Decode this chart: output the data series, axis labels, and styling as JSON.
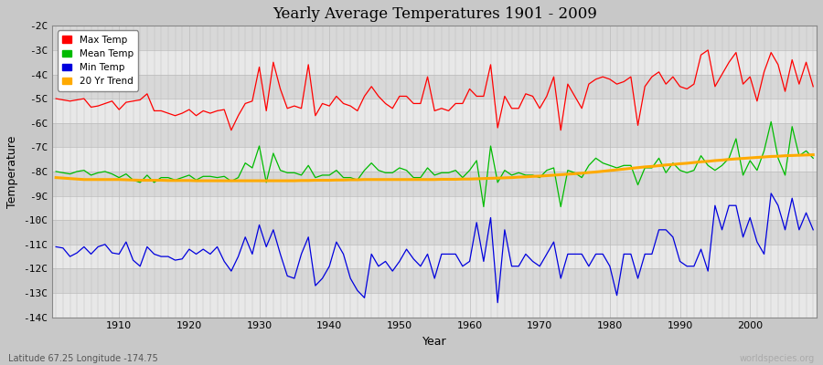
{
  "title": "Yearly Average Temperatures 1901 - 2009",
  "xlabel": "Year",
  "ylabel": "Temperature",
  "subtitle_left": "Latitude 67.25 Longitude -174.75",
  "subtitle_right": "worldspecies.org",
  "year_start": 1901,
  "year_end": 2009,
  "ylim": [
    -14,
    -2
  ],
  "yticks": [
    -14,
    -13,
    -12,
    -11,
    -10,
    -9,
    -8,
    -7,
    -6,
    -5,
    -4,
    -3,
    -2
  ],
  "ytick_labels": [
    "-14C",
    "-13C",
    "-12C",
    "-11C",
    "-10C",
    "-9C",
    "-8C",
    "-7C",
    "-6C",
    "-5C",
    "-4C",
    "-3C",
    "-2C"
  ],
  "xticks": [
    1910,
    1920,
    1930,
    1940,
    1950,
    1960,
    1970,
    1980,
    1990,
    2000
  ],
  "colors": {
    "max_temp": "#ff0000",
    "mean_temp": "#00bb00",
    "min_temp": "#0000dd",
    "trend": "#ffaa00",
    "fig_bg": "#c8c8c8",
    "plot_bg_light": "#e8e8e8",
    "plot_bg_dark": "#d8d8d8",
    "grid": "#bbbbbb"
  },
  "legend": {
    "max_temp": "Max Temp",
    "mean_temp": "Mean Temp",
    "min_temp": "Min Temp",
    "trend": "20 Yr Trend"
  },
  "max_temp": [
    -5.0,
    -5.05,
    -5.1,
    -5.05,
    -5.0,
    -5.35,
    -5.3,
    -5.2,
    -5.1,
    -5.45,
    -5.15,
    -5.1,
    -5.05,
    -4.8,
    -5.5,
    -5.5,
    -5.6,
    -5.7,
    -5.6,
    -5.45,
    -5.7,
    -5.5,
    -5.6,
    -5.5,
    -5.45,
    -6.3,
    -5.7,
    -5.2,
    -5.1,
    -3.7,
    -5.5,
    -3.5,
    -4.6,
    -5.4,
    -5.3,
    -5.4,
    -3.6,
    -5.7,
    -5.2,
    -5.3,
    -4.9,
    -5.2,
    -5.3,
    -5.5,
    -4.9,
    -4.5,
    -4.9,
    -5.2,
    -5.4,
    -4.9,
    -4.9,
    -5.2,
    -5.2,
    -4.1,
    -5.5,
    -5.4,
    -5.5,
    -5.2,
    -5.2,
    -4.6,
    -4.9,
    -4.9,
    -3.6,
    -6.2,
    -4.9,
    -5.4,
    -5.4,
    -4.8,
    -4.9,
    -5.4,
    -4.9,
    -4.1,
    -6.3,
    -4.4,
    -4.9,
    -5.4,
    -4.4,
    -4.2,
    -4.1,
    -4.2,
    -4.4,
    -4.3,
    -4.1,
    -6.1,
    -4.5,
    -4.1,
    -3.9,
    -4.4,
    -4.1,
    -4.5,
    -4.6,
    -4.4,
    -3.2,
    -3.0,
    -4.5,
    -4.0,
    -3.5,
    -3.1,
    -4.4,
    -4.1,
    -5.1,
    -3.9,
    -3.1,
    -3.6,
    -4.7,
    -3.4,
    -4.4,
    -3.5,
    -4.5
  ],
  "mean_temp": [
    -8.0,
    -8.05,
    -8.1,
    -8.0,
    -7.95,
    -8.15,
    -8.05,
    -8.0,
    -8.1,
    -8.25,
    -8.1,
    -8.35,
    -8.45,
    -8.15,
    -8.45,
    -8.25,
    -8.25,
    -8.35,
    -8.25,
    -8.15,
    -8.35,
    -8.2,
    -8.2,
    -8.25,
    -8.2,
    -8.4,
    -8.25,
    -7.65,
    -7.85,
    -6.95,
    -8.45,
    -7.25,
    -7.95,
    -8.05,
    -8.05,
    -8.15,
    -7.75,
    -8.25,
    -8.15,
    -8.15,
    -7.95,
    -8.25,
    -8.25,
    -8.35,
    -7.95,
    -7.65,
    -7.95,
    -8.05,
    -8.05,
    -7.85,
    -7.95,
    -8.25,
    -8.25,
    -7.85,
    -8.15,
    -8.05,
    -8.05,
    -7.95,
    -8.25,
    -7.95,
    -7.55,
    -9.45,
    -6.95,
    -8.45,
    -7.95,
    -8.15,
    -8.05,
    -8.15,
    -8.15,
    -8.25,
    -7.95,
    -7.85,
    -9.45,
    -7.95,
    -8.05,
    -8.25,
    -7.75,
    -7.45,
    -7.65,
    -7.75,
    -7.85,
    -7.75,
    -7.75,
    -8.55,
    -7.85,
    -7.85,
    -7.45,
    -8.05,
    -7.65,
    -7.95,
    -8.05,
    -7.95,
    -7.35,
    -7.75,
    -7.95,
    -7.75,
    -7.45,
    -6.65,
    -8.15,
    -7.55,
    -7.95,
    -7.15,
    -5.95,
    -7.45,
    -8.15,
    -6.15,
    -7.35,
    -7.15,
    -7.45
  ],
  "min_temp": [
    -11.1,
    -11.15,
    -11.5,
    -11.35,
    -11.1,
    -11.4,
    -11.1,
    -11.0,
    -11.35,
    -11.4,
    -10.9,
    -11.65,
    -11.9,
    -11.1,
    -11.4,
    -11.5,
    -11.5,
    -11.65,
    -11.6,
    -11.2,
    -11.4,
    -11.2,
    -11.4,
    -11.1,
    -11.7,
    -12.1,
    -11.5,
    -10.7,
    -11.4,
    -10.2,
    -11.1,
    -10.4,
    -11.4,
    -12.3,
    -12.4,
    -11.4,
    -10.7,
    -12.7,
    -12.4,
    -11.9,
    -10.9,
    -11.4,
    -12.4,
    -12.9,
    -13.2,
    -11.4,
    -11.9,
    -11.7,
    -12.1,
    -11.7,
    -11.2,
    -11.6,
    -11.9,
    -11.4,
    -12.4,
    -11.4,
    -11.4,
    -11.4,
    -11.9,
    -11.7,
    -10.1,
    -11.7,
    -9.9,
    -13.4,
    -10.4,
    -11.9,
    -11.9,
    -11.4,
    -11.7,
    -11.9,
    -11.4,
    -10.9,
    -12.4,
    -11.4,
    -11.4,
    -11.4,
    -11.9,
    -11.4,
    -11.4,
    -11.9,
    -13.1,
    -11.4,
    -11.4,
    -12.4,
    -11.4,
    -11.4,
    -10.4,
    -10.4,
    -10.7,
    -11.7,
    -11.9,
    -11.9,
    -11.2,
    -12.1,
    -9.4,
    -10.4,
    -9.4,
    -9.4,
    -10.7,
    -9.9,
    -10.9,
    -11.4,
    -8.9,
    -9.4,
    -10.4,
    -9.1,
    -10.4,
    -9.7,
    -10.4
  ],
  "trend": [
    -8.25,
    -8.27,
    -8.29,
    -8.31,
    -8.33,
    -8.33,
    -8.33,
    -8.33,
    -8.33,
    -8.33,
    -8.34,
    -8.35,
    -8.36,
    -8.36,
    -8.36,
    -8.36,
    -8.37,
    -8.37,
    -8.37,
    -8.37,
    -8.38,
    -8.38,
    -8.38,
    -8.38,
    -8.38,
    -8.38,
    -8.38,
    -8.38,
    -8.38,
    -8.38,
    -8.38,
    -8.38,
    -8.38,
    -8.38,
    -8.38,
    -8.37,
    -8.37,
    -8.36,
    -8.36,
    -8.36,
    -8.35,
    -8.35,
    -8.34,
    -8.34,
    -8.33,
    -8.33,
    -8.33,
    -8.33,
    -8.33,
    -8.33,
    -8.33,
    -8.33,
    -8.33,
    -8.33,
    -8.33,
    -8.32,
    -8.32,
    -8.32,
    -8.31,
    -8.31,
    -8.3,
    -8.29,
    -8.28,
    -8.27,
    -8.26,
    -8.25,
    -8.23,
    -8.22,
    -8.2,
    -8.19,
    -8.17,
    -8.15,
    -8.13,
    -8.11,
    -8.09,
    -8.07,
    -8.04,
    -8.02,
    -7.99,
    -7.96,
    -7.93,
    -7.9,
    -7.87,
    -7.84,
    -7.81,
    -7.79,
    -7.76,
    -7.73,
    -7.71,
    -7.68,
    -7.66,
    -7.63,
    -7.6,
    -7.58,
    -7.55,
    -7.53,
    -7.5,
    -7.48,
    -7.46,
    -7.44,
    -7.42,
    -7.4,
    -7.38,
    -7.37,
    -7.35,
    -7.34,
    -7.33,
    -7.32,
    -7.31
  ]
}
